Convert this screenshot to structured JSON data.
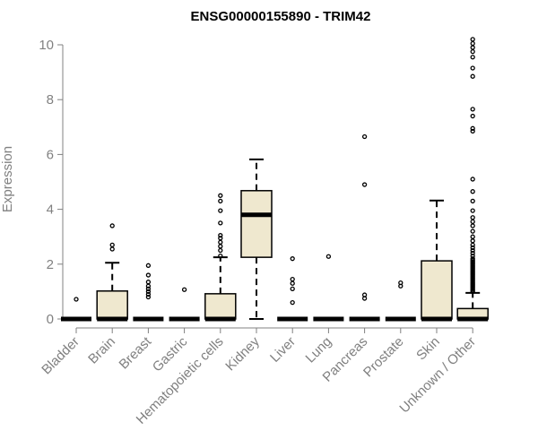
{
  "chart_data": {
    "type": "boxplot",
    "title": "ENSG00000155890 - TRIM42",
    "xlabel": "",
    "ylabel": "Expression",
    "ylim": [
      0,
      10.2
    ],
    "yticks": [
      0,
      2,
      4,
      6,
      8,
      10
    ],
    "grid": false,
    "colors": {
      "box_fill": "#efe8cf",
      "line": "#000000",
      "axis": "#808080"
    },
    "categories": [
      "Bladder",
      "Brain",
      "Breast",
      "Gastric",
      "Hematopoietic cells",
      "Kidney",
      "Liver",
      "Lung",
      "Pancreas",
      "Prostate",
      "Skin",
      "Unknown / Other"
    ],
    "boxes": [
      {
        "category": "Bladder",
        "q1": 0,
        "median": 0,
        "q3": 0,
        "whisker_low": 0,
        "whisker_high": 0,
        "outliers": [
          0.72
        ]
      },
      {
        "category": "Brain",
        "q1": 0,
        "median": 0,
        "q3": 1.02,
        "whisker_low": 0,
        "whisker_high": 2.05,
        "outliers": [
          2.55,
          2.7,
          3.4
        ]
      },
      {
        "category": "Breast",
        "q1": 0,
        "median": 0,
        "q3": 0,
        "whisker_low": 0,
        "whisker_high": 0,
        "outliers": [
          0.8,
          0.9,
          1.0,
          1.1,
          1.2,
          1.35,
          1.6,
          1.95
        ]
      },
      {
        "category": "Gastric",
        "q1": 0,
        "median": 0,
        "q3": 0,
        "whisker_low": 0,
        "whisker_high": 0,
        "outliers": [
          1.07
        ]
      },
      {
        "category": "Hematopoietic cells",
        "q1": 0,
        "median": 0,
        "q3": 0.92,
        "whisker_low": 0,
        "whisker_high": 2.25,
        "outliers": [
          2.3,
          2.5,
          2.65,
          2.8,
          2.95,
          3.05,
          3.5,
          3.95,
          4.3,
          4.5
        ]
      },
      {
        "category": "Kidney",
        "q1": 2.25,
        "median": 3.8,
        "q3": 4.68,
        "whisker_low": 0,
        "whisker_high": 5.82,
        "outliers": []
      },
      {
        "category": "Liver",
        "q1": 0,
        "median": 0,
        "q3": 0,
        "whisker_low": 0,
        "whisker_high": 0,
        "outliers": [
          0.6,
          1.1,
          1.3,
          1.45,
          2.2
        ]
      },
      {
        "category": "Lung",
        "q1": 0,
        "median": 0,
        "q3": 0,
        "whisker_low": 0,
        "whisker_high": 0,
        "outliers": [
          2.28
        ]
      },
      {
        "category": "Pancreas",
        "q1": 0,
        "median": 0,
        "q3": 0,
        "whisker_low": 0,
        "whisker_high": 0,
        "outliers": [
          0.75,
          0.88,
          4.9,
          6.65
        ]
      },
      {
        "category": "Prostate",
        "q1": 0,
        "median": 0,
        "q3": 0,
        "whisker_low": 0,
        "whisker_high": 0,
        "outliers": [
          1.2,
          1.32
        ]
      },
      {
        "category": "Skin",
        "q1": 0,
        "median": 0,
        "q3": 2.12,
        "whisker_low": 0,
        "whisker_high": 4.32,
        "outliers": []
      },
      {
        "category": "Unknown / Other",
        "q1": 0,
        "median": 0,
        "q3": 0.38,
        "whisker_low": 0,
        "whisker_high": 0.95,
        "outliers": [
          1.0,
          1.05,
          1.1,
          1.15,
          1.2,
          1.25,
          1.3,
          1.35,
          1.4,
          1.45,
          1.5,
          1.55,
          1.6,
          1.65,
          1.7,
          1.75,
          1.8,
          1.85,
          1.9,
          1.95,
          2.0,
          2.05,
          2.1,
          2.15,
          2.2,
          2.3,
          2.4,
          2.5,
          2.6,
          2.7,
          2.85,
          3.0,
          3.2,
          3.4,
          3.55,
          3.7,
          3.95,
          4.3,
          4.65,
          5.1,
          6.85,
          6.95,
          7.4,
          7.65,
          8.85,
          9.15,
          9.55,
          9.75,
          9.9,
          10.05,
          10.2
        ]
      }
    ]
  }
}
